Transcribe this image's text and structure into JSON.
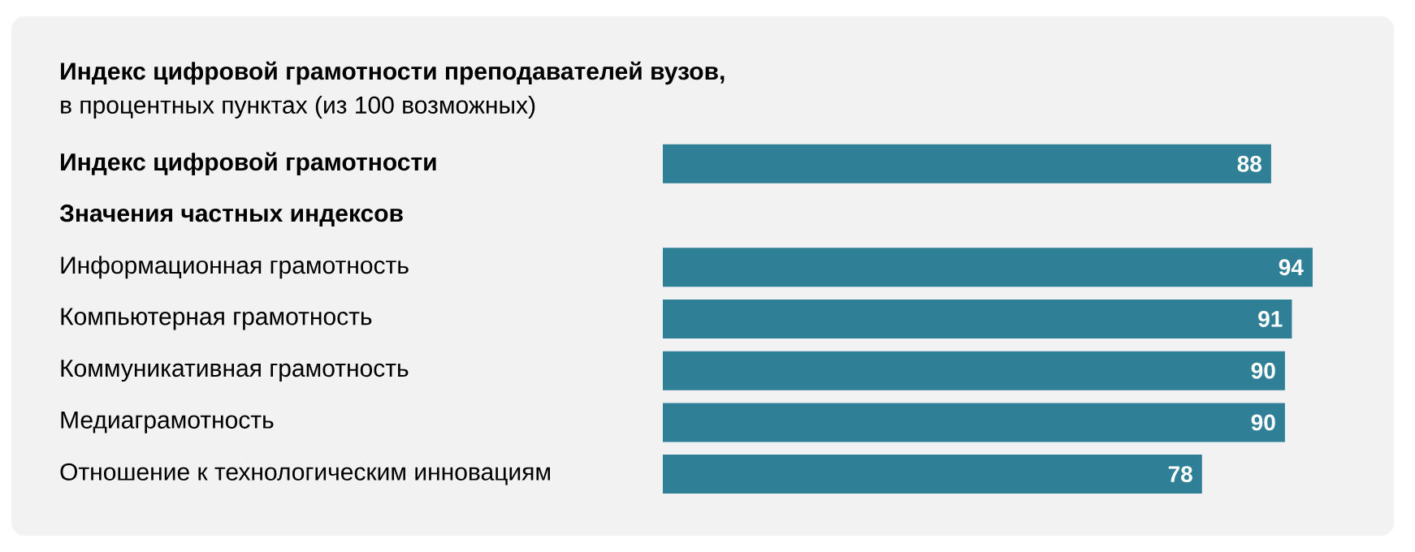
{
  "chart_data": {
    "type": "bar",
    "orientation": "horizontal",
    "title": "Индекс цифровой грамотности преподавателей вузов,",
    "subtitle": "в процентных пунктах (из 100 возможных)",
    "categories": [
      "Индекс цифровой грамотности",
      "Значения частных индексов",
      "Информационная грамотность",
      "Компьютерная грамотность",
      "Коммуникативная грамотность",
      "Медиаграмотность",
      "Отношение к технологическим инновациям"
    ],
    "values": [
      88,
      null,
      94,
      91,
      90,
      90,
      78
    ],
    "color": "#2f7f96",
    "data_labels": true
  }
}
